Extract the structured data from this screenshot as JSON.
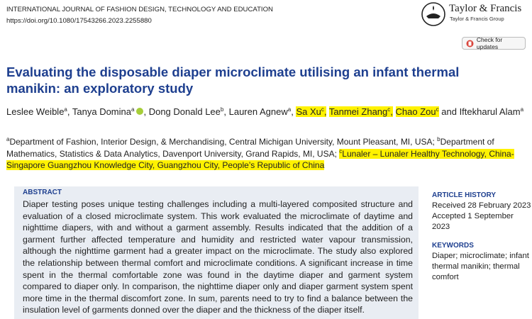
{
  "header": {
    "journal": "INTERNATIONAL JOURNAL OF FASHION DESIGN, TECHNOLOGY AND EDUCATION",
    "doi": "https://doi.org/10.1080/17543266.2023.2255880",
    "publisher": "Taylor & Francis",
    "publisher_group": "Taylor & Francis Group",
    "update_button": "Check for updates"
  },
  "title": "Evaluating the disposable diaper microclimate utilising an infant thermal manikin: an exploratory study",
  "authors": {
    "separator": ",",
    "conjunction": "and",
    "list": [
      {
        "name": "Leslee Weible",
        "sup": "a"
      },
      {
        "name": "Tanya Domina",
        "sup": "a",
        "orcid": true
      },
      {
        "name": "Dong Donald Lee",
        "sup": "b"
      },
      {
        "name": "Lauren Agnew",
        "sup": "a"
      },
      {
        "name": "Sa Xu",
        "sup": "c",
        "highlighted": true
      },
      {
        "name": "Tanmei Zhang",
        "sup": "c",
        "highlighted": true
      },
      {
        "name": "Chao Zou",
        "sup": "c",
        "highlighted": true
      },
      {
        "name": "Iftekharul Alam",
        "sup": "a"
      }
    ]
  },
  "affiliations": [
    {
      "letter": "a",
      "text": "Department of Fashion, Interior Design, & Merchandising, Central Michigan University, Mount Pleasant, MI, USA;"
    },
    {
      "letter": "b",
      "text": "Department of Mathematics, Statistics & Data Analytics, Davenport University, Grand Rapids, MI, USA;"
    },
    {
      "letter": "c",
      "text": "Lunaler – Lunaler Healthy Technology, China-Singapore Guangzhou Knowledge City, Guangzhou City, People’s Republic of China",
      "highlighted": true
    }
  ],
  "abstract": {
    "heading": "ABSTRACT",
    "text": "Diaper testing poses unique testing challenges including a multi-layered composited structure and evaluation of a closed microclimate system. This work evaluated the microclimate of daytime and nighttime diapers, with and without a garment assembly. Results indicated that the addition of a garment further affected temperature and humidity and restricted water vapour transmission, although the nighttime garment had a greater impact on the microclimate. The study also explored the relationship between thermal comfort and microclimate conditions. A significant increase in time spent in the thermal comfortable zone was found in the daytime diaper and garment system compared to diaper only. In comparison, the nighttime diaper only and diaper garment system spent more time in the thermal discomfort zone. In sum, parents need to try to find a balance between the insulation level of garments donned over the diaper and the thickness of the diaper itself."
  },
  "article_history": {
    "heading": "ARTICLE HISTORY",
    "received": "Received 28 February 2023",
    "accepted": "Accepted 1 September 2023"
  },
  "keywords": {
    "heading": "KEYWORDS",
    "text": "Diaper; microclimate; infant thermal manikin; thermal comfort"
  }
}
